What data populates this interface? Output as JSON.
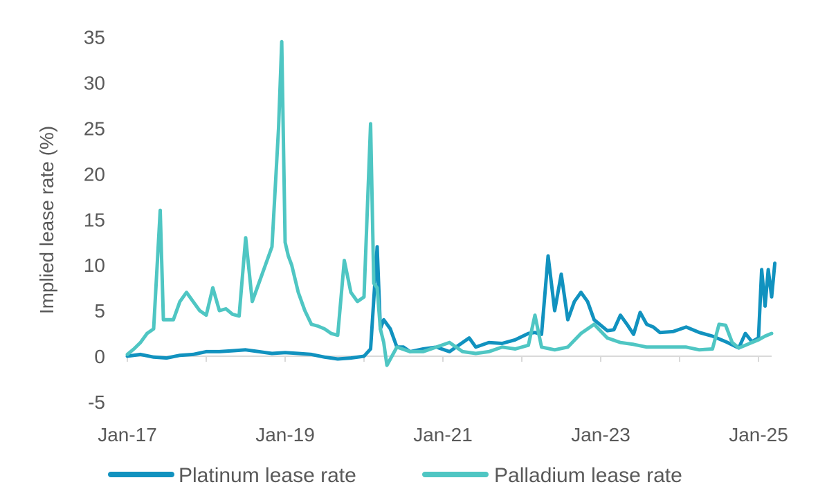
{
  "chart_data": {
    "type": "line",
    "title": "",
    "xlabel": "",
    "ylabel": "Implied lease rate (%)",
    "ylim": [
      -5,
      35
    ],
    "yticks": [
      -5,
      0,
      5,
      10,
      15,
      20,
      25,
      30,
      35
    ],
    "xlim": [
      "2017-01",
      "2025-03"
    ],
    "xticks": [
      "Jan-17",
      "Jan-19",
      "Jan-21",
      "Jan-23",
      "Jan-25"
    ],
    "grid": false,
    "legend": "bottom",
    "series": [
      {
        "name": "Platinum lease rate",
        "color": "#1192bf",
        "x": [
          "2017-01",
          "2017-03",
          "2017-05",
          "2017-07",
          "2017-09",
          "2017-11",
          "2018-01",
          "2018-03",
          "2018-05",
          "2018-07",
          "2018-09",
          "2018-11",
          "2019-01",
          "2019-03",
          "2019-05",
          "2019-07",
          "2019-09",
          "2019-11",
          "2020-01",
          "2020-02",
          "2020-03",
          "2020-03",
          "2020-04",
          "2020-05",
          "2020-06",
          "2020-07",
          "2020-08",
          "2020-10",
          "2020-12",
          "2021-02",
          "2021-04",
          "2021-05",
          "2021-06",
          "2021-08",
          "2021-10",
          "2021-12",
          "2022-02",
          "2022-03",
          "2022-04",
          "2022-05",
          "2022-06",
          "2022-07",
          "2022-08",
          "2022-09",
          "2022-10",
          "2022-11",
          "2022-12",
          "2023-01",
          "2023-02",
          "2023-03",
          "2023-04",
          "2023-05",
          "2023-06",
          "2023-07",
          "2023-08",
          "2023-09",
          "2023-10",
          "2023-12",
          "2024-02",
          "2024-04",
          "2024-06",
          "2024-08",
          "2024-10",
          "2024-11",
          "2024-12",
          "2025-01",
          "2025-01",
          "2025-02",
          "2025-02",
          "2025-03",
          "2025-03"
        ],
        "values": [
          0,
          0.2,
          -0.1,
          -0.2,
          0.1,
          0.2,
          0.5,
          0.5,
          0.6,
          0.7,
          0.5,
          0.3,
          0.4,
          0.3,
          0.2,
          -0.1,
          -0.3,
          -0.2,
          0,
          0.8,
          12,
          3,
          4,
          3,
          1,
          1,
          0.5,
          0.8,
          1,
          0.5,
          1.5,
          2,
          1,
          1.5,
          1.4,
          1.8,
          2.5,
          2.6,
          2.4,
          11,
          5,
          9,
          4,
          6,
          7,
          6,
          4,
          3.4,
          2.8,
          2.9,
          4.5,
          3.5,
          2.4,
          4.8,
          3.5,
          3.2,
          2.6,
          2.7,
          3.2,
          2.6,
          2.2,
          1.6,
          0.9,
          2.5,
          1.6,
          2,
          9.5,
          5.5,
          9.5,
          6.5,
          10.2
        ]
      },
      {
        "name": "Palladium lease rate",
        "color": "#4fc6c3",
        "x": [
          "2017-01",
          "2017-02",
          "2017-03",
          "2017-04",
          "2017-05",
          "2017-06",
          "2017-06",
          "2017-07",
          "2017-08",
          "2017-09",
          "2017-10",
          "2017-11",
          "2017-12",
          "2018-01",
          "2018-02",
          "2018-03",
          "2018-04",
          "2018-05",
          "2018-06",
          "2018-07",
          "2018-08",
          "2018-09",
          "2018-10",
          "2018-11",
          "2018-12",
          "2018-12",
          "2019-01",
          "2019-01",
          "2019-02",
          "2019-03",
          "2019-04",
          "2019-05",
          "2019-06",
          "2019-07",
          "2019-08",
          "2019-09",
          "2019-10",
          "2019-11",
          "2019-12",
          "2020-01",
          "2020-02",
          "2020-02",
          "2020-03",
          "2020-03",
          "2020-04",
          "2020-04",
          "2020-06",
          "2020-08",
          "2020-10",
          "2020-12",
          "2021-02",
          "2021-04",
          "2021-06",
          "2021-08",
          "2021-10",
          "2021-12",
          "2022-02",
          "2022-03",
          "2022-04",
          "2022-06",
          "2022-08",
          "2022-10",
          "2022-12",
          "2023-02",
          "2023-04",
          "2023-06",
          "2023-08",
          "2023-10",
          "2023-12",
          "2024-02",
          "2024-04",
          "2024-06",
          "2024-07",
          "2024-08",
          "2024-09",
          "2024-10",
          "2024-11",
          "2024-12",
          "2025-01",
          "2025-02",
          "2025-03"
        ],
        "values": [
          0.2,
          0.8,
          1.5,
          2.5,
          3,
          16,
          4,
          4,
          4,
          6,
          7,
          6,
          5,
          4.5,
          7.5,
          5,
          5.2,
          4.6,
          4.4,
          13,
          6,
          8,
          10,
          12,
          25,
          34.5,
          12.5,
          11,
          10,
          7,
          5,
          3.5,
          3.3,
          3,
          2.5,
          2.3,
          10.5,
          7,
          6,
          6.5,
          25.5,
          8,
          7.5,
          3,
          1.5,
          -1,
          1,
          0.5,
          0.5,
          1,
          1.5,
          0.5,
          0.3,
          0.5,
          1,
          0.8,
          1.2,
          4.5,
          1,
          0.7,
          1,
          2.5,
          3.5,
          2,
          1.5,
          1.3,
          1,
          1,
          1,
          1,
          0.7,
          0.8,
          3.5,
          3.4,
          1.5,
          0.9,
          1.2,
          1.5,
          1.8,
          2.2,
          2.5
        ]
      }
    ]
  }
}
